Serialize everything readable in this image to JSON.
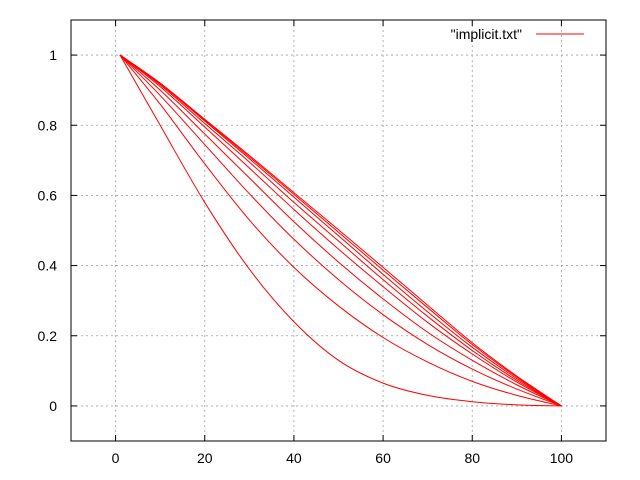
{
  "chart_data": {
    "type": "line",
    "title": "",
    "xlabel": "",
    "ylabel": "",
    "xlim": [
      -10,
      110
    ],
    "ylim": [
      -0.1,
      1.1
    ],
    "xticks": [
      0,
      20,
      40,
      60,
      80,
      100
    ],
    "yticks": [
      0,
      0.2,
      0.4,
      0.6,
      0.8,
      1
    ],
    "xtick_labels": [
      "0",
      "20",
      "40",
      "60",
      "80",
      "100"
    ],
    "ytick_labels": [
      "0",
      "0.2",
      "0.4",
      "0.6",
      "0.8",
      "1"
    ],
    "grid": true,
    "legend": {
      "position": "top-right",
      "label": "\"implicit.txt\""
    },
    "line_color": "#ff0000",
    "x": [
      1,
      10,
      20,
      30,
      40,
      50,
      60,
      70,
      80,
      90,
      100
    ],
    "series": [
      {
        "values": [
          1.0,
          0.8,
          0.58,
          0.39,
          0.24,
          0.13,
          0.065,
          0.03,
          0.012,
          0.003,
          0.0
        ]
      },
      {
        "values": [
          1.0,
          0.86,
          0.69,
          0.53,
          0.395,
          0.285,
          0.195,
          0.125,
          0.07,
          0.03,
          0.0
        ]
      },
      {
        "values": [
          1.0,
          0.885,
          0.745,
          0.605,
          0.475,
          0.36,
          0.26,
          0.175,
          0.105,
          0.048,
          0.0
        ]
      },
      {
        "values": [
          1.0,
          0.9,
          0.775,
          0.65,
          0.525,
          0.41,
          0.305,
          0.21,
          0.13,
          0.06,
          0.0
        ]
      },
      {
        "values": [
          1.0,
          0.91,
          0.795,
          0.678,
          0.56,
          0.447,
          0.34,
          0.238,
          0.148,
          0.068,
          0.0
        ]
      },
      {
        "values": [
          1.0,
          0.915,
          0.805,
          0.695,
          0.58,
          0.47,
          0.36,
          0.255,
          0.158,
          0.073,
          0.0
        ]
      },
      {
        "values": [
          1.0,
          0.918,
          0.812,
          0.705,
          0.595,
          0.485,
          0.375,
          0.268,
          0.167,
          0.078,
          0.0
        ]
      },
      {
        "values": [
          1.0,
          0.92,
          0.815,
          0.71,
          0.603,
          0.495,
          0.387,
          0.28,
          0.175,
          0.082,
          0.0
        ]
      },
      {
        "values": [
          1.0,
          0.92,
          0.817,
          0.714,
          0.608,
          0.502,
          0.395,
          0.287,
          0.18,
          0.085,
          0.0
        ]
      }
    ]
  }
}
